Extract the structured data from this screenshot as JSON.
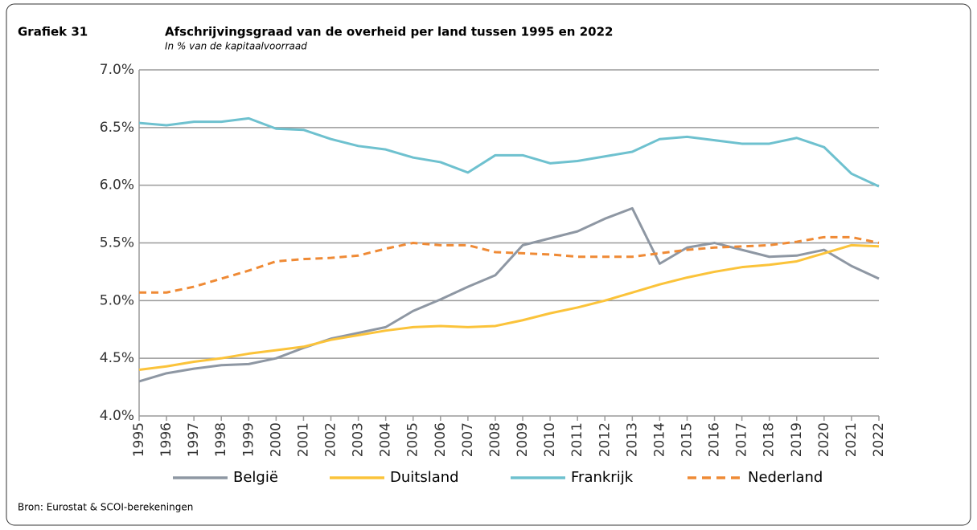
{
  "chart_data": {
    "type": "line",
    "figure_label": "Grafiek 31",
    "title": "Afschrijvingsgraad van de overheid per land tussen 1995 en 2022",
    "subtitle": "In % van de kapitaalvoorraad",
    "source": "Bron: Eurostat & SCOI-berekeningen",
    "categories": [
      "1995",
      "1996",
      "1997",
      "1998",
      "1999",
      "2000",
      "2001",
      "2002",
      "2003",
      "2004",
      "2005",
      "2006",
      "2007",
      "2008",
      "2009",
      "2010",
      "2011",
      "2012",
      "2013",
      "2014",
      "2015",
      "2016",
      "2017",
      "2018",
      "2019",
      "2020",
      "2021",
      "2022"
    ],
    "series": [
      {
        "name": "België",
        "color": "#8e97a3",
        "dash": false,
        "values": [
          4.3,
          4.37,
          4.41,
          4.44,
          4.45,
          4.5,
          4.59,
          4.67,
          4.72,
          4.77,
          4.91,
          5.01,
          5.12,
          5.22,
          5.48,
          5.54,
          5.6,
          5.71,
          5.8,
          5.32,
          5.46,
          5.5,
          5.44,
          5.38,
          5.39,
          5.44,
          5.3,
          5.19
        ]
      },
      {
        "name": "Duitsland",
        "color": "#fbc33a",
        "dash": false,
        "values": [
          4.4,
          4.43,
          4.47,
          4.5,
          4.54,
          4.57,
          4.6,
          4.66,
          4.7,
          4.74,
          4.77,
          4.78,
          4.77,
          4.78,
          4.83,
          4.89,
          4.94,
          5.0,
          5.07,
          5.14,
          5.2,
          5.25,
          5.29,
          5.31,
          5.34,
          5.41,
          5.48,
          5.47
        ]
      },
      {
        "name": "Frankrijk",
        "color": "#6ec1cf",
        "dash": false,
        "values": [
          6.54,
          6.52,
          6.55,
          6.55,
          6.58,
          6.49,
          6.48,
          6.4,
          6.34,
          6.31,
          6.24,
          6.2,
          6.11,
          6.26,
          6.26,
          6.19,
          6.21,
          6.25,
          6.29,
          6.4,
          6.42,
          6.39,
          6.36,
          6.36,
          6.41,
          6.33,
          6.1,
          5.99
        ]
      },
      {
        "name": "Nederland",
        "color": "#ef8a35",
        "dash": true,
        "values": [
          5.07,
          5.07,
          5.12,
          5.19,
          5.26,
          5.34,
          5.36,
          5.37,
          5.39,
          5.45,
          5.5,
          5.48,
          5.48,
          5.42,
          5.41,
          5.4,
          5.38,
          5.38,
          5.38,
          5.41,
          5.44,
          5.46,
          5.47,
          5.48,
          5.51,
          5.55,
          5.55,
          5.5
        ]
      }
    ],
    "ylim": [
      4,
      7
    ],
    "yticks": [
      {
        "value": 4,
        "label": "4.0%"
      },
      {
        "value": 4.5,
        "label": "4.5%"
      },
      {
        "value": 5,
        "label": "5.0%"
      },
      {
        "value": 5.5,
        "label": "5.5%"
      },
      {
        "value": 6,
        "label": "6.0%"
      },
      {
        "value": 6.5,
        "label": "6.5%"
      },
      {
        "value": 7,
        "label": "7.0%"
      }
    ],
    "grid": true,
    "legend": "bottom"
  }
}
